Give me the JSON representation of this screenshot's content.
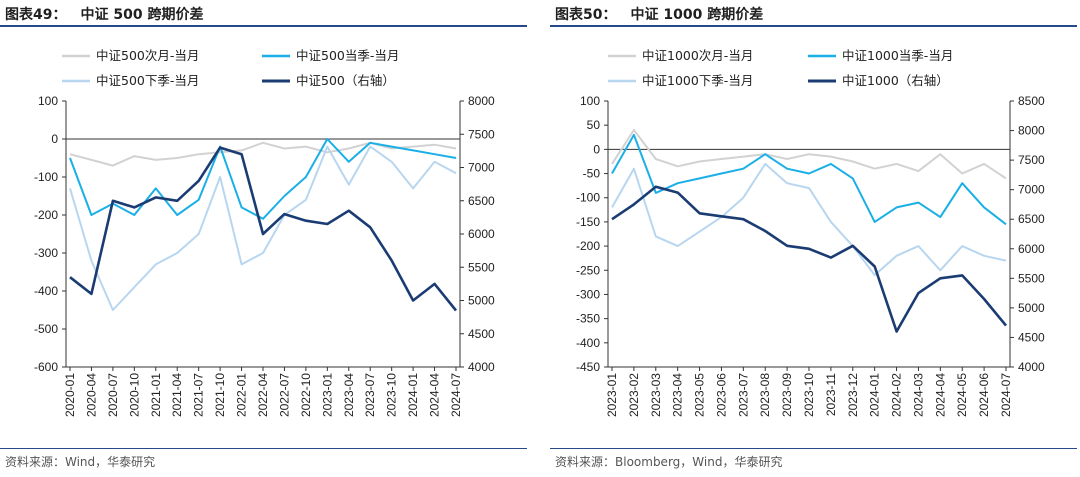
{
  "charts": [
    {
      "title_num": "图表49：",
      "title_text": "中证 500 跨期价差",
      "source": "资料来源：Wind，华泰研究",
      "colors": {
        "s1": "#d2d2d2",
        "s2": "#1aafe6",
        "s3": "#b8d6ef",
        "s4": "#1a3c73"
      }
    },
    {
      "title_num": "图表50：",
      "title_text": "中证 1000 跨期价差",
      "source": "资料来源：Bloomberg，Wind，华泰研究",
      "colors": {
        "s1": "#d2d2d2",
        "s2": "#1aafe6",
        "s3": "#b8d6ef",
        "s4": "#1a3c73"
      }
    }
  ],
  "chart_data": [
    {
      "type": "line",
      "title": "中证 500 跨期价差",
      "categories": [
        "2020-01",
        "2020-04",
        "2020-07",
        "2020-10",
        "2021-01",
        "2021-04",
        "2021-07",
        "2021-10",
        "2022-01",
        "2022-04",
        "2022-07",
        "2022-10",
        "2023-01",
        "2023-04",
        "2023-07",
        "2023-10",
        "2024-01",
        "2024-04",
        "2024-07"
      ],
      "ylim_left": [
        -600,
        100
      ],
      "yticks_left": [
        100,
        0,
        -100,
        -200,
        -300,
        -400,
        -500,
        -600
      ],
      "ylim_right": [
        4000,
        8000
      ],
      "yticks_right": [
        8000,
        7500,
        7000,
        6500,
        6000,
        5500,
        5000,
        4500,
        4000
      ],
      "legend": [
        "中证500次月-当月",
        "中证500当季-当月",
        "中证500下季-当月",
        "中证500（右轴）"
      ],
      "series": [
        {
          "name": "中证500次月-当月",
          "axis": "left",
          "values": [
            -40,
            -55,
            -70,
            -45,
            -55,
            -50,
            -40,
            -35,
            -30,
            -10,
            -25,
            -20,
            -35,
            -25,
            -10,
            -25,
            -20,
            -15,
            -25
          ]
        },
        {
          "name": "中证500当季-当月",
          "axis": "left",
          "values": [
            -50,
            -200,
            -170,
            -200,
            -130,
            -200,
            -160,
            -20,
            -180,
            -210,
            -150,
            -100,
            0,
            -60,
            -10,
            -20,
            -30,
            -40,
            -50
          ]
        },
        {
          "name": "中证500下季-当月",
          "axis": "left",
          "values": [
            -130,
            -320,
            -450,
            -390,
            -330,
            -300,
            -250,
            -100,
            -330,
            -300,
            -200,
            -160,
            -20,
            -120,
            -20,
            -60,
            -130,
            -60,
            -90
          ]
        },
        {
          "name": "中证500（右轴）",
          "axis": "right",
          "values": [
            5350,
            5100,
            6500,
            6400,
            6550,
            6500,
            6800,
            7300,
            7200,
            6000,
            6300,
            6200,
            6150,
            6350,
            6100,
            5600,
            5000,
            5250,
            4850
          ]
        }
      ]
    },
    {
      "type": "line",
      "title": "中证 1000 跨期价差",
      "categories": [
        "2023-01",
        "2023-02",
        "2023-03",
        "2023-04",
        "2023-05",
        "2023-06",
        "2023-07",
        "2023-08",
        "2023-09",
        "2023-10",
        "2023-11",
        "2023-12",
        "2024-01",
        "2024-02",
        "2024-03",
        "2024-04",
        "2024-05",
        "2024-06",
        "2024-07"
      ],
      "ylim_left": [
        -450,
        100
      ],
      "yticks_left": [
        100,
        50,
        0,
        -50,
        -100,
        -150,
        -200,
        -250,
        -300,
        -350,
        -400,
        -450
      ],
      "ylim_right": [
        4000,
        8500
      ],
      "yticks_right": [
        8500,
        8000,
        7500,
        7000,
        6500,
        6000,
        5500,
        5000,
        4500,
        4000
      ],
      "legend": [
        "中证1000次月-当月",
        "中证1000当季-当月",
        "中证1000下季-当月",
        "中证1000（右轴）"
      ],
      "series": [
        {
          "name": "中证1000次月-当月",
          "axis": "left",
          "values": [
            -30,
            40,
            -20,
            -35,
            -25,
            -20,
            -15,
            -10,
            -20,
            -10,
            -15,
            -25,
            -40,
            -30,
            -45,
            -10,
            -50,
            -30,
            -60
          ]
        },
        {
          "name": "中证1000当季-当月",
          "axis": "left",
          "values": [
            -50,
            30,
            -90,
            -70,
            -60,
            -50,
            -40,
            -10,
            -40,
            -50,
            -30,
            -60,
            -150,
            -120,
            -110,
            -140,
            -70,
            -120,
            -155
          ]
        },
        {
          "name": "中证1000下季-当月",
          "axis": "left",
          "values": [
            -120,
            -40,
            -180,
            -200,
            -170,
            -140,
            -100,
            -30,
            -70,
            -80,
            -150,
            -200,
            -260,
            -220,
            -200,
            -250,
            -200,
            -220,
            -230
          ]
        },
        {
          "name": "中证1000（右轴）",
          "axis": "right",
          "values": [
            6500,
            6750,
            7050,
            6950,
            6600,
            6550,
            6500,
            6300,
            6050,
            6000,
            5850,
            6050,
            5700,
            4600,
            5250,
            5500,
            5550,
            5150,
            4700
          ]
        }
      ]
    }
  ]
}
